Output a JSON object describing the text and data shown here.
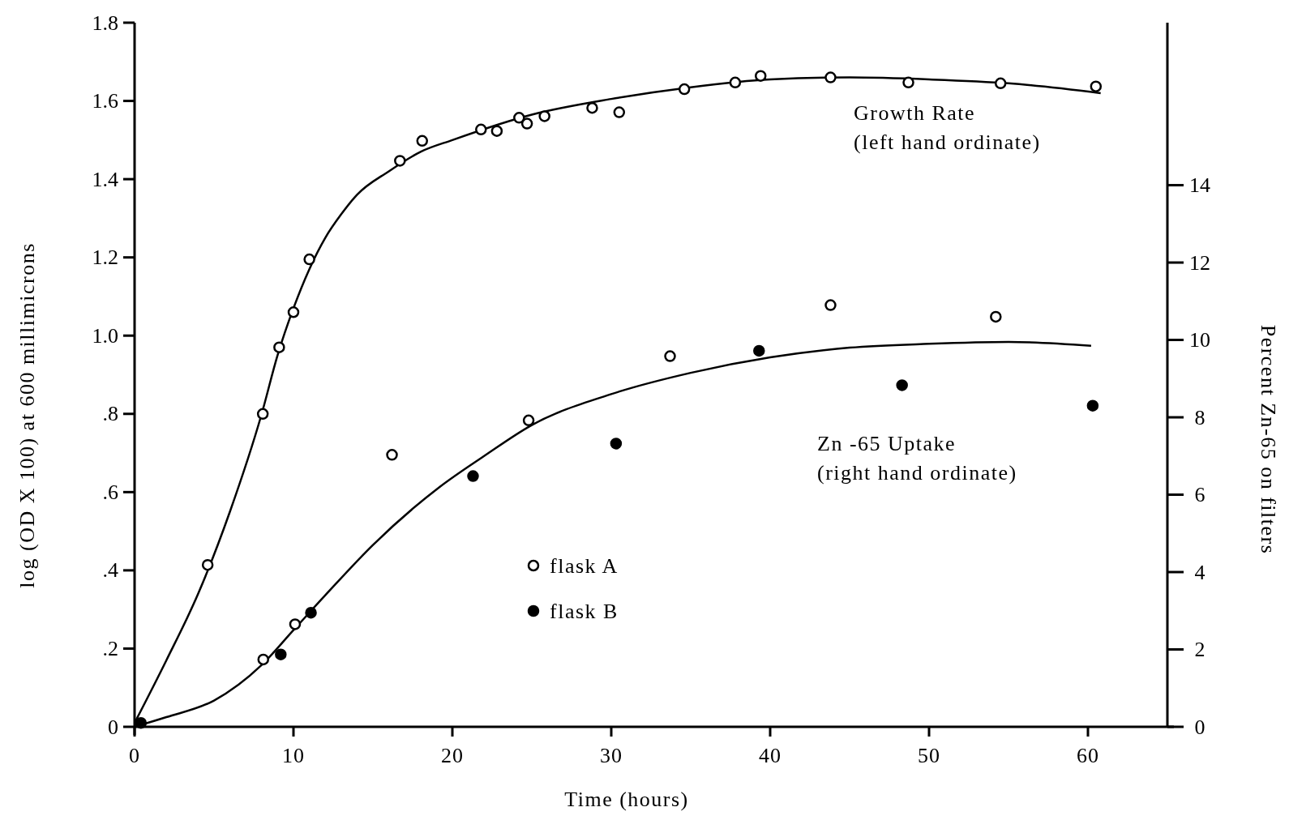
{
  "chart_data": {
    "type": "scatter",
    "xlabel": "Time (hours)",
    "ylabel": "log (OD X 100) at 600 millimicrons",
    "y2label": "Percent Zn-65 on filters",
    "xlim": [
      0,
      65
    ],
    "xticks": [
      0,
      10,
      20,
      30,
      40,
      50,
      60
    ],
    "ylim": [
      0,
      1.8
    ],
    "yticks": [
      0,
      {
        "value": 0.2,
        "label": ".2"
      },
      {
        "value": 0.4,
        "label": ".4"
      },
      {
        "value": 0.6,
        "label": ".6"
      },
      {
        "value": 0.8,
        "label": ".8"
      },
      {
        "value": 1.0,
        "label": "1.0"
      },
      1.2,
      1.4,
      1.6,
      1.8
    ],
    "y2lim": [
      0,
      18.2
    ],
    "y2ticks": [
      0,
      2,
      4,
      6,
      8,
      10,
      12,
      14
    ],
    "legend": "bottom",
    "grid": false,
    "annotations": [
      "Growth Rate\n(left hand ordinate)",
      "Zn -65 Uptake\n(right hand ordinate)"
    ],
    "series": [
      {
        "name": "flask A",
        "marker": "circle",
        "color": "#ffffff",
        "x": [
          4.6,
          8.07,
          9.1,
          10.0,
          11.0,
          16.7,
          18.1,
          21.8,
          22.8,
          24.2,
          24.7,
          25.8,
          28.8,
          30.5,
          34.6,
          37.8,
          39.4,
          43.8,
          48.7,
          54.5,
          60.5
        ],
        "values": [
          0.414,
          0.8,
          0.97,
          1.06,
          1.195,
          1.447,
          1.498,
          1.527,
          1.523,
          1.557,
          1.542,
          1.561,
          1.582,
          1.571,
          1.63,
          1.647,
          1.664,
          1.66,
          1.647,
          1.645,
          1.637
        ]
      },
      {
        "type": "line",
        "color": "#000000",
        "x": [
          0,
          2,
          4,
          6,
          8,
          9,
          10,
          11,
          12,
          13,
          14,
          16,
          18,
          20,
          25,
          30,
          35,
          40,
          45,
          50,
          55,
          60.8
        ],
        "values": [
          0.01,
          0.17,
          0.34,
          0.55,
          0.8,
          0.95,
          1.07,
          1.17,
          1.25,
          1.31,
          1.36,
          1.42,
          1.47,
          1.5,
          1.565,
          1.605,
          1.635,
          1.655,
          1.66,
          1.655,
          1.645,
          1.62
        ]
      },
      {
        "marker": "circle",
        "axis": "y2",
        "color": "#ffffff",
        "x": [
          8.1,
          10.1,
          16.2,
          24.8,
          33.7,
          43.8,
          54.2
        ],
        "values": [
          1.74,
          2.65,
          7.03,
          7.92,
          9.58,
          10.9,
          10.6
        ]
      },
      {
        "name": "flask B",
        "marker": "circle",
        "axis": "y2",
        "color": "#000000",
        "x": [
          0.4,
          9.2,
          11.1,
          21.3,
          30.3,
          39.3,
          48.3,
          60.3
        ],
        "values": [
          0.1,
          1.87,
          2.95,
          6.48,
          7.32,
          9.72,
          8.83,
          8.3
        ]
      },
      {
        "type": "line",
        "axis": "y2",
        "color": "#000000",
        "x": [
          0,
          2,
          5,
          8,
          10,
          12,
          15,
          19.2,
          22,
          25,
          30,
          35,
          40,
          45,
          50,
          55,
          60.2
        ],
        "values": [
          0,
          0.25,
          0.68,
          1.6,
          2.5,
          3.4,
          4.7,
          6.2,
          7.0,
          7.8,
          8.6,
          9.15,
          9.55,
          9.8,
          9.9,
          9.95,
          9.85
        ]
      }
    ]
  }
}
